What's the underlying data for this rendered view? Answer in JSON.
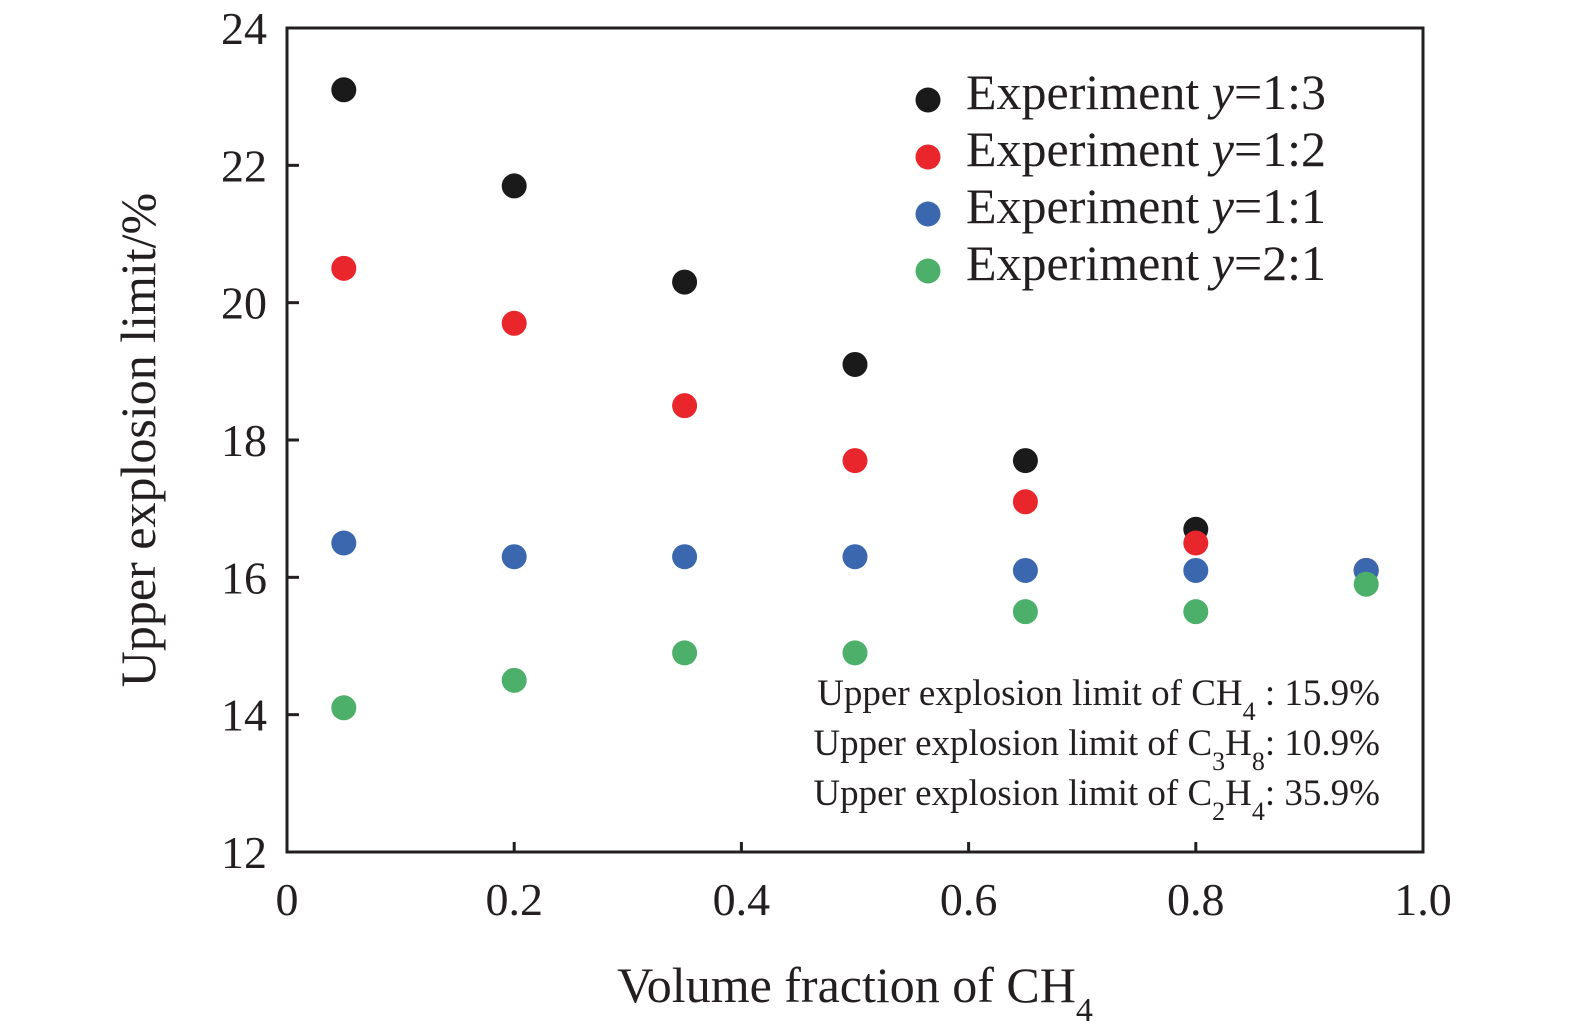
{
  "chart_data": {
    "type": "scatter",
    "xlabel": "Volume fraction of CH",
    "xlabel_sub": "4",
    "ylabel": "Upper explosion limit/%",
    "xlim": [
      0,
      1.0
    ],
    "ylim": [
      12,
      24
    ],
    "x_ticks": [
      0,
      0.2,
      0.4,
      0.6,
      0.8,
      1.0
    ],
    "x_tick_labels": [
      "0",
      "0.2",
      "0.4",
      "0.6",
      "0.8",
      "1.0"
    ],
    "y_ticks": [
      12,
      14,
      16,
      18,
      20,
      22,
      24
    ],
    "y_tick_labels": [
      "12",
      "14",
      "16",
      "18",
      "20",
      "22",
      "24"
    ],
    "grid": false,
    "legend_position": "top-right",
    "series": [
      {
        "name_prefix": "Experiment ",
        "name_var": "y",
        "name_suffix": "=1:3",
        "color": "#1a1a1a",
        "x": [
          0.05,
          0.2,
          0.35,
          0.5,
          0.65,
          0.8,
          0.95
        ],
        "y": [
          23.1,
          21.7,
          20.3,
          19.1,
          17.7,
          16.7,
          16.1
        ]
      },
      {
        "name_prefix": "Experiment ",
        "name_var": "y",
        "name_suffix": "=1:2",
        "color": "#e8262c",
        "x": [
          0.05,
          0.2,
          0.35,
          0.5,
          0.65,
          0.8,
          0.95
        ],
        "y": [
          20.5,
          19.7,
          18.5,
          17.7,
          17.1,
          16.5,
          16.1
        ]
      },
      {
        "name_prefix": "Experiment ",
        "name_var": "y",
        "name_suffix": "=1:1",
        "color": "#3a67ad",
        "x": [
          0.05,
          0.2,
          0.35,
          0.5,
          0.65,
          0.8,
          0.95
        ],
        "y": [
          16.5,
          16.3,
          16.3,
          16.3,
          16.1,
          16.1,
          16.1
        ]
      },
      {
        "name_prefix": "Experiment ",
        "name_var": "y",
        "name_suffix": "=2:1",
        "color": "#4caf6a",
        "x": [
          0.05,
          0.2,
          0.35,
          0.5,
          0.65,
          0.8,
          0.95
        ],
        "y": [
          14.1,
          14.5,
          14.9,
          14.9,
          15.5,
          15.5,
          15.9
        ]
      }
    ],
    "annotations": [
      {
        "parts": [
          {
            "t": "Upper explosion limit of CH"
          },
          {
            "sub": "4"
          },
          {
            "t": " : 15.9%"
          }
        ]
      },
      {
        "parts": [
          {
            "t": "Upper explosion limit of C"
          },
          {
            "sub": "3"
          },
          {
            "t": "H"
          },
          {
            "sub": "8"
          },
          {
            "t": ": 10.9%"
          }
        ]
      },
      {
        "parts": [
          {
            "t": "Upper explosion limit of C"
          },
          {
            "sub": "2"
          },
          {
            "t": "H"
          },
          {
            "sub": "4"
          },
          {
            "t": ": 35.9%"
          }
        ]
      }
    ]
  }
}
